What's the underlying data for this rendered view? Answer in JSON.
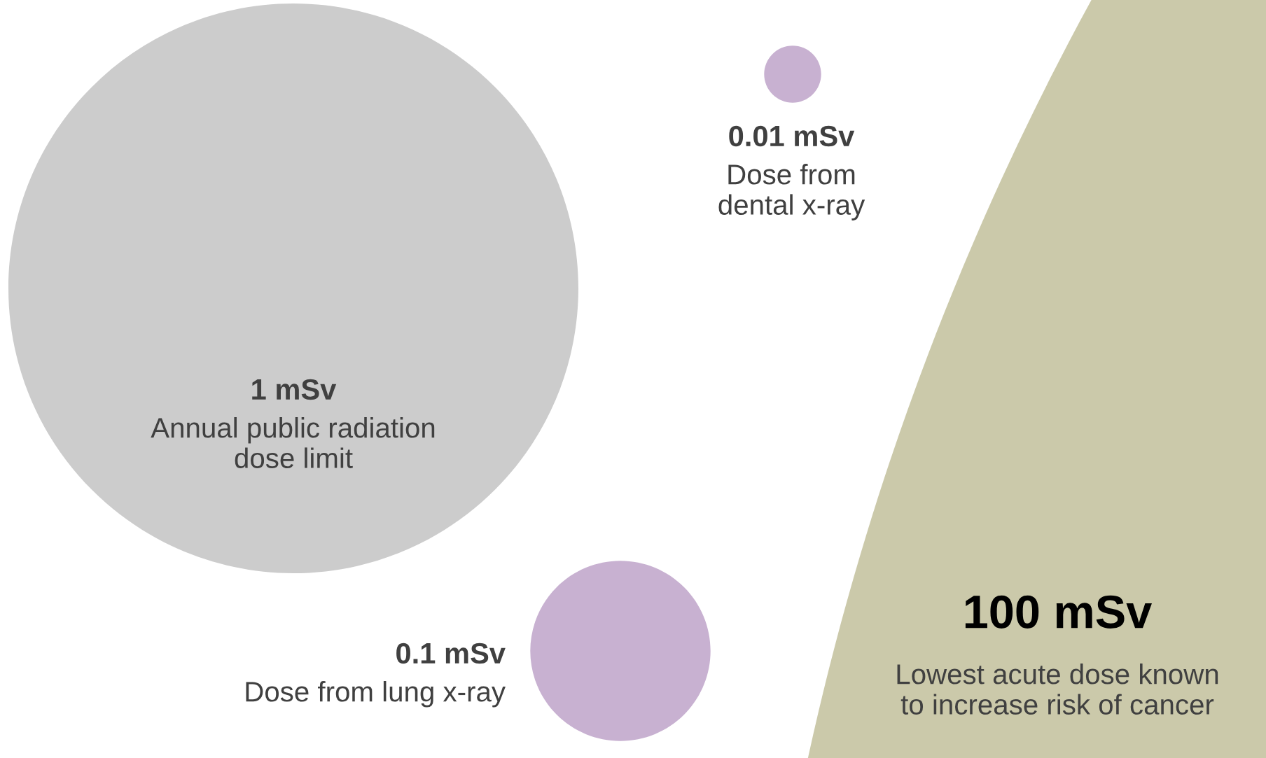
{
  "chart_data": {
    "type": "other",
    "categories": [
      "Annual public radiation\ndose limit",
      "Dose from\ndental x-ray",
      "Dose from lung x-ray",
      "Lowest acute dose known\nto increase risk of cancer"
    ],
    "values": [
      1,
      0.01,
      0.1,
      100
    ],
    "value_labels": [
      "1 mSv",
      "0.01 mSv",
      "0.1 mSv",
      "100 mSv"
    ],
    "colors": [
      "#cccccc",
      "#c8b1d1",
      "#c8b1d1",
      "#cbc9aa"
    ]
  }
}
